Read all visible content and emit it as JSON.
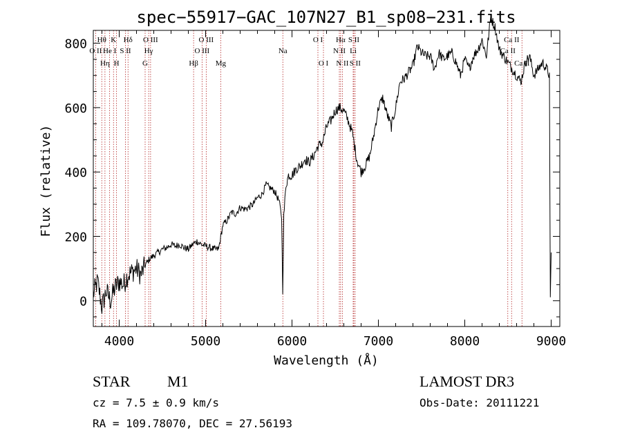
{
  "chart_data": {
    "type": "line",
    "title": "spec−55917−GAC_107N27_B1_sp08−231.fits",
    "xlabel": "Wavelength (Å)",
    "ylabel": "Flux (relative)",
    "xlim": [
      3700,
      9100
    ],
    "ylim": [
      -80,
      840
    ],
    "xticks": [
      4000,
      5000,
      6000,
      7000,
      8000,
      9000
    ],
    "yticks": [
      0,
      200,
      400,
      600,
      800
    ],
    "grid": false,
    "series": [
      {
        "name": "flux",
        "x": [
          3700,
          3750,
          3800,
          3850,
          3900,
          3950,
          4000,
          4050,
          4100,
          4150,
          4200,
          4250,
          4300,
          4350,
          4400,
          4450,
          4500,
          4550,
          4600,
          4650,
          4700,
          4750,
          4800,
          4850,
          4900,
          4950,
          5000,
          5050,
          5100,
          5150,
          5200,
          5250,
          5300,
          5350,
          5400,
          5450,
          5500,
          5550,
          5600,
          5650,
          5700,
          5750,
          5800,
          5850,
          5880,
          5893,
          5905,
          5930,
          5960,
          6000,
          6050,
          6100,
          6150,
          6200,
          6250,
          6300,
          6350,
          6400,
          6450,
          6500,
          6550,
          6600,
          6650,
          6700,
          6750,
          6800,
          6850,
          6900,
          6950,
          7000,
          7050,
          7100,
          7150,
          7200,
          7250,
          7300,
          7350,
          7400,
          7450,
          7500,
          7550,
          7600,
          7650,
          7700,
          7750,
          7800,
          7850,
          7900,
          7950,
          8000,
          8050,
          8100,
          8150,
          8200,
          8250,
          8300,
          8350,
          8400,
          8450,
          8500,
          8550,
          8600,
          8650,
          8700,
          8750,
          8800,
          8850,
          8900,
          8950,
          8980,
          8990,
          9000
        ],
        "values": [
          20,
          60,
          -20,
          30,
          0,
          40,
          60,
          50,
          80,
          90,
          100,
          80,
          110,
          130,
          140,
          150,
          160,
          165,
          175,
          170,
          175,
          165,
          160,
          175,
          185,
          175,
          170,
          165,
          160,
          160,
          235,
          250,
          275,
          270,
          290,
          285,
          290,
          300,
          320,
          330,
          360,
          350,
          340,
          310,
          260,
          30,
          260,
          360,
          390,
          390,
          410,
          420,
          440,
          430,
          450,
          480,
          490,
          540,
          560,
          590,
          600,
          590,
          560,
          520,
          440,
          400,
          420,
          450,
          520,
          600,
          630,
          580,
          540,
          600,
          680,
          690,
          710,
          730,
          790,
          770,
          760,
          760,
          720,
          770,
          750,
          760,
          770,
          740,
          700,
          750,
          720,
          760,
          780,
          810,
          760,
          880,
          850,
          780,
          760,
          740,
          720,
          700,
          680,
          740,
          760,
          700,
          720,
          740,
          720,
          700,
          0,
          150
        ]
      }
    ],
    "lines": [
      {
        "name": "O II",
        "wl": 3727,
        "row": 2
      },
      {
        "name": "Hθ",
        "wl": 3798,
        "row": 1
      },
      {
        "name": "Hη",
        "wl": 3835,
        "row": 3
      },
      {
        "name": "He I",
        "wl": 3889,
        "row": 2
      },
      {
        "name": "K",
        "wl": 3934,
        "row": 1
      },
      {
        "name": "H",
        "wl": 3969,
        "row": 3
      },
      {
        "name": "S II",
        "wl": 4072,
        "row": 2
      },
      {
        "name": "Hδ",
        "wl": 4102,
        "row": 1
      },
      {
        "name": "G",
        "wl": 4300,
        "row": 3
      },
      {
        "name": "Hγ",
        "wl": 4341,
        "row": 2
      },
      {
        "name": "O III",
        "wl": 4363,
        "row": 1
      },
      {
        "name": "Hβ",
        "wl": 4861,
        "row": 3
      },
      {
        "name": "O III",
        "wl": 4959,
        "row": 2
      },
      {
        "name": "O III",
        "wl": 5007,
        "row": 1
      },
      {
        "name": "Mg",
        "wl": 5175,
        "row": 3
      },
      {
        "name": "Na",
        "wl": 5894,
        "row": 2
      },
      {
        "name": "O I",
        "wl": 6300,
        "row": 1
      },
      {
        "name": "O I",
        "wl": 6364,
        "row": 3
      },
      {
        "name": "N II",
        "wl": 6548,
        "row": 2
      },
      {
        "name": "Hα",
        "wl": 6563,
        "row": 1
      },
      {
        "name": "N II",
        "wl": 6583,
        "row": 3
      },
      {
        "name": "Li",
        "wl": 6708,
        "row": 2
      },
      {
        "name": "S II",
        "wl": 6716,
        "row": 1
      },
      {
        "name": "S II",
        "wl": 6731,
        "row": 3
      },
      {
        "name": "Ca II",
        "wl": 8498,
        "row": 2
      },
      {
        "name": "Ca II",
        "wl": 8542,
        "row": 1
      },
      {
        "name": "Ca II",
        "wl": 8662,
        "row": 3
      }
    ]
  },
  "info": {
    "class": "STAR",
    "subclass": "M1",
    "cz": "cz = 7.5 ± 0.9 km/s",
    "coords": "RA = 109.78070, DEC =  27.56193",
    "survey": "LAMOST DR3",
    "obs_date": "Obs-Date: 20111221"
  }
}
